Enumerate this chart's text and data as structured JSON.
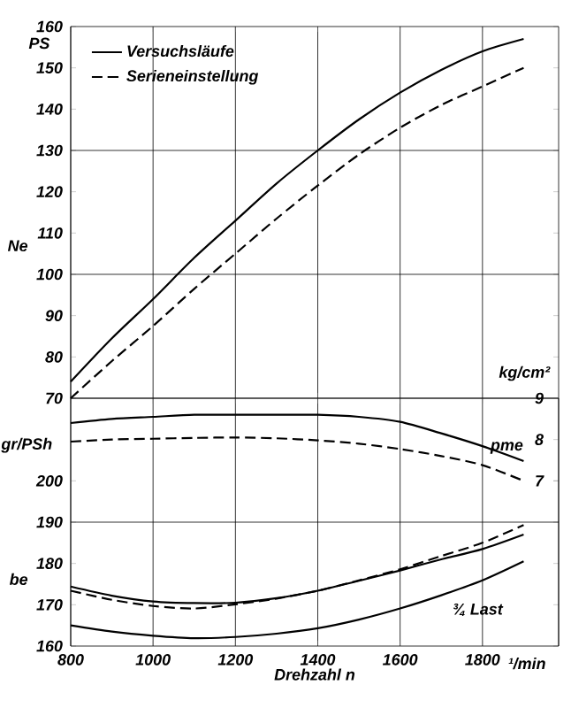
{
  "chart_data": [
    {
      "type": "line",
      "ylabel": "Ne",
      "legend": "top left",
      "grid": "x",
      "tick_labels": "y",
      "x": [
        800,
        900,
        1000,
        1100,
        1200,
        1300,
        1400,
        1500,
        1600,
        1700,
        1800,
        1900
      ],
      "xlim": [
        800,
        1985
      ],
      "xticks": [
        800,
        1000,
        1200,
        1400,
        1600,
        1800
      ],
      "ylim": [
        70,
        160
      ],
      "yticks": [
        70,
        80,
        90,
        100,
        110,
        120,
        130,
        140,
        150,
        160
      ],
      "ref_lines": [
        {
          "axis": "y",
          "value": 100
        },
        {
          "axis": "y",
          "value": 130
        }
      ],
      "annotations": [
        "PS"
      ],
      "series": [
        {
          "name": "Versuchsläufe",
          "color": "#000000",
          "line_style": "solid",
          "values": [
            74,
            84.5,
            94,
            104,
            113,
            122,
            130,
            137.5,
            144,
            149.5,
            154,
            157
          ]
        },
        {
          "name": "Serieneinstellung",
          "color": "#000000",
          "line_style": "dashed",
          "values": [
            70,
            79,
            87.5,
            96.5,
            105,
            113.5,
            121.5,
            129,
            135.5,
            141,
            145.5,
            150
          ]
        }
      ]
    },
    {
      "type": "line",
      "ylabel": "be",
      "y2label": "pme",
      "xlabel": "Drehzahl n",
      "grid": "x",
      "x": [
        800,
        900,
        1000,
        1100,
        1200,
        1300,
        1400,
        1500,
        1600,
        1700,
        1800,
        1900
      ],
      "xlim": [
        800,
        1985
      ],
      "xticks": [
        800,
        1000,
        1200,
        1400,
        1600,
        1800
      ],
      "ylim": [
        160,
        220
      ],
      "yticks": [
        160,
        170,
        180,
        190,
        200
      ],
      "y2lim": [
        3,
        9
      ],
      "y2ticks": [
        7,
        8,
        9
      ],
      "ref_lines": [
        {
          "axis": "y",
          "value": 190
        }
      ],
      "annotations": [
        "gr/PSh",
        "kg/cm²",
        "¹/min"
      ],
      "series": [
        {
          "color": "#000000",
          "line_style": "solid",
          "axis": "y2",
          "values": [
            8.4,
            8.5,
            8.55,
            8.6,
            8.6,
            8.6,
            8.6,
            8.55,
            8.43,
            8.15,
            7.84,
            7.48
          ]
        },
        {
          "color": "#000000",
          "line_style": "dashed",
          "axis": "y2",
          "values": [
            7.95,
            8.0,
            8.02,
            8.04,
            8.05,
            8.03,
            7.98,
            7.9,
            7.77,
            7.6,
            7.38,
            7.0
          ]
        },
        {
          "color": "#000000",
          "line_style": "solid",
          "values": [
            174.4,
            172.2,
            170.8,
            170.4,
            170.5,
            171.6,
            173.4,
            175.8,
            178.3,
            181,
            183.5,
            187
          ]
        },
        {
          "color": "#000000",
          "line_style": "dashed",
          "values": [
            173.4,
            171.2,
            169.7,
            169.1,
            170.1,
            171.5,
            173.4,
            175.9,
            178.6,
            181.8,
            185,
            189.3
          ]
        },
        {
          "name": "¾ Last",
          "color": "#000000",
          "line_style": "solid",
          "values": [
            165,
            163.5,
            162.5,
            161.9,
            162.2,
            163,
            164.3,
            166.4,
            169.1,
            172.3,
            175.9,
            180.5
          ]
        }
      ]
    }
  ]
}
